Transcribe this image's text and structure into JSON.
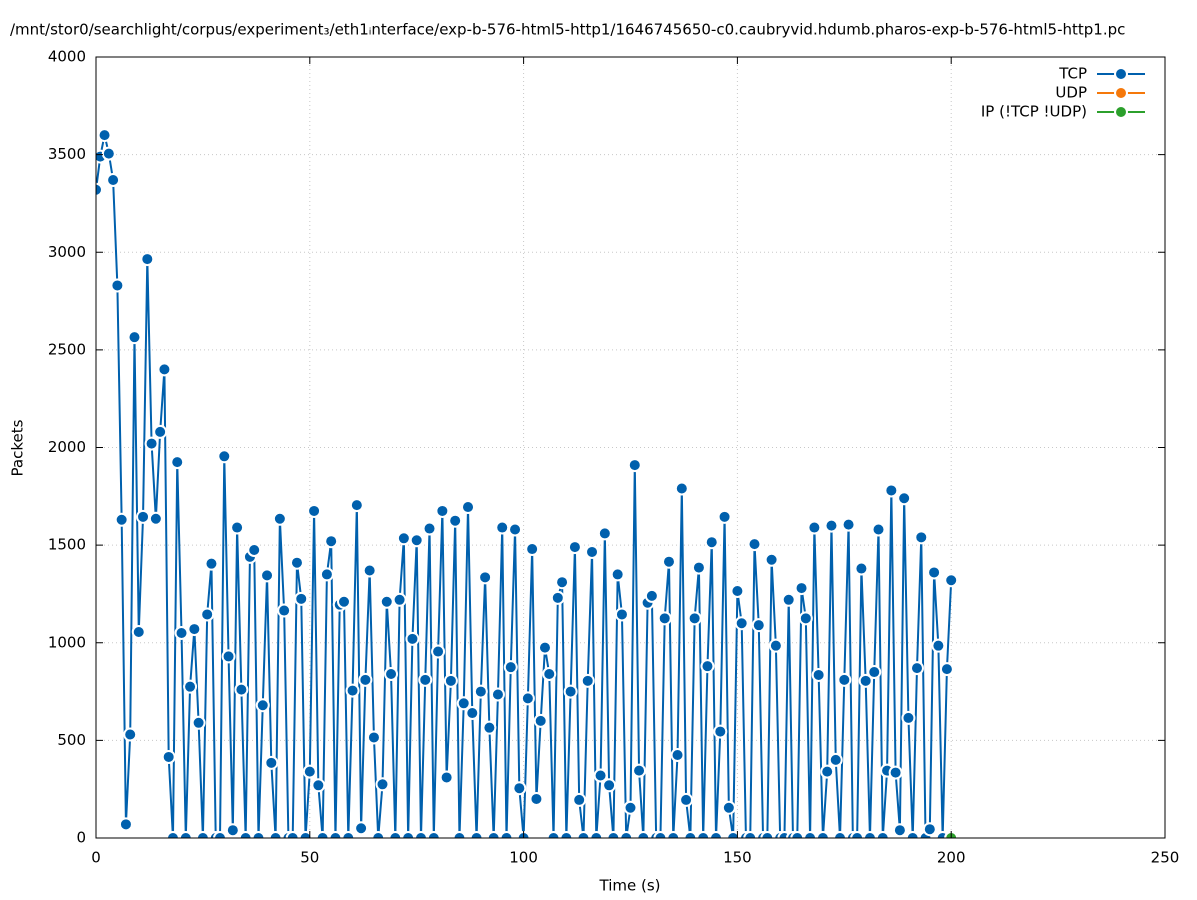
{
  "chart_data": {
    "type": "line",
    "title": "/mnt/stor0/searchlight/corpus/experiment₃/eth1ᵢnterface/exp-b-576-html5-http1/1646745650-c0.caubryvid.hdumb.pharos-exp-b-576-html5-http1.pc",
    "xlabel": "Time (s)",
    "ylabel": "Packets",
    "xlim": [
      0,
      250
    ],
    "xticks": [
      0,
      50,
      100,
      150,
      200,
      250
    ],
    "ylim": [
      0,
      4000
    ],
    "yticks": [
      0,
      500,
      1000,
      1500,
      2000,
      2500,
      3000,
      3500,
      4000
    ],
    "grid": true,
    "legend": "top-right",
    "series": [
      {
        "name": "TCP",
        "color": "#0060ad",
        "x": [
          0,
          1,
          2,
          3,
          4,
          5,
          6,
          7,
          8,
          9,
          10,
          11,
          12,
          13,
          14,
          15,
          16,
          17,
          18,
          19,
          20,
          21,
          22,
          23,
          24,
          25,
          26,
          27,
          28,
          29,
          30,
          31,
          32,
          33,
          34,
          35,
          36,
          37,
          38,
          39,
          40,
          41,
          42,
          43,
          44,
          45,
          46,
          47,
          48,
          49,
          50,
          51,
          52,
          53,
          54,
          55,
          56,
          57,
          58,
          59,
          60,
          61,
          62,
          63,
          64,
          65,
          66,
          67,
          68,
          69,
          70,
          71,
          72,
          73,
          74,
          75,
          76,
          77,
          78,
          79,
          80,
          81,
          82,
          83,
          84,
          85,
          86,
          87,
          88,
          89,
          90,
          91,
          92,
          93,
          94,
          95,
          96,
          97,
          98,
          99,
          100,
          101,
          102,
          103,
          104,
          105,
          106,
          107,
          108,
          109,
          110,
          111,
          112,
          113,
          114,
          115,
          116,
          117,
          118,
          119,
          120,
          121,
          122,
          123,
          124,
          125,
          126,
          127,
          128,
          129,
          130,
          131,
          132,
          133,
          134,
          135,
          136,
          137,
          138,
          139,
          140,
          141,
          142,
          143,
          144,
          145,
          146,
          147,
          148,
          149,
          150,
          151,
          152,
          153,
          154,
          155,
          156,
          157,
          158,
          159,
          160,
          161,
          162,
          163,
          164,
          165,
          166,
          167,
          168,
          169,
          170,
          171,
          172,
          173,
          174,
          175,
          176,
          177,
          178,
          179,
          180,
          181,
          182,
          183,
          184,
          185,
          186,
          187,
          188,
          189,
          190,
          191,
          192,
          193,
          194,
          195,
          196,
          197,
          198,
          199,
          200
        ],
        "values": [
          3320,
          3490,
          3600,
          3505,
          3370,
          2830,
          1630,
          70,
          530,
          2565,
          1055,
          1645,
          2965,
          2020,
          1635,
          2080,
          2400,
          415,
          0,
          1925,
          1050,
          0,
          775,
          1070,
          590,
          0,
          1145,
          1405,
          0,
          0,
          1955,
          930,
          40,
          1590,
          760,
          0,
          1440,
          1475,
          0,
          680,
          1345,
          385,
          0,
          1635,
          1165,
          0,
          0,
          1410,
          1225,
          0,
          340,
          1675,
          270,
          0,
          1350,
          1520,
          0,
          1195,
          1210,
          0,
          755,
          1705,
          50,
          810,
          1370,
          515,
          0,
          275,
          1210,
          840,
          0,
          1220,
          1535,
          0,
          1020,
          1525,
          0,
          810,
          1585,
          0,
          955,
          1675,
          310,
          805,
          1625,
          0,
          690,
          1695,
          640,
          0,
          750,
          1335,
          565,
          0,
          735,
          1590,
          0,
          875,
          1580,
          255,
          0,
          715,
          1480,
          200,
          600,
          975,
          840,
          0,
          1230,
          1310,
          0,
          750,
          1490,
          195,
          0,
          805,
          1465,
          0,
          320,
          1560,
          270,
          0,
          1350,
          1145,
          0,
          155,
          1910,
          345,
          0,
          1205,
          1240,
          0,
          0,
          1125,
          1415,
          0,
          425,
          1790,
          195,
          0,
          1125,
          1385,
          0,
          880,
          1515,
          0,
          545,
          1645,
          155,
          0,
          1265,
          1100,
          0,
          0,
          1505,
          1090,
          0,
          0,
          1425,
          985,
          0,
          0,
          1220,
          0,
          0,
          1280,
          1125,
          0,
          1590,
          835,
          0,
          340,
          1600,
          400,
          0,
          810,
          1605,
          0,
          0,
          1380,
          805,
          0,
          850,
          1580,
          0,
          345,
          1780,
          335,
          40,
          1740,
          615,
          0,
          870,
          1540,
          0,
          45,
          1360,
          985,
          0,
          865,
          1320
        ]
      },
      {
        "name": "UDP",
        "color": "#f5780a",
        "x": [
          200
        ],
        "values": [
          0
        ]
      },
      {
        "name": "IP (!TCP  !UDP)",
        "color": "#2ca02c",
        "x": [
          200
        ],
        "values": [
          0
        ]
      }
    ]
  }
}
